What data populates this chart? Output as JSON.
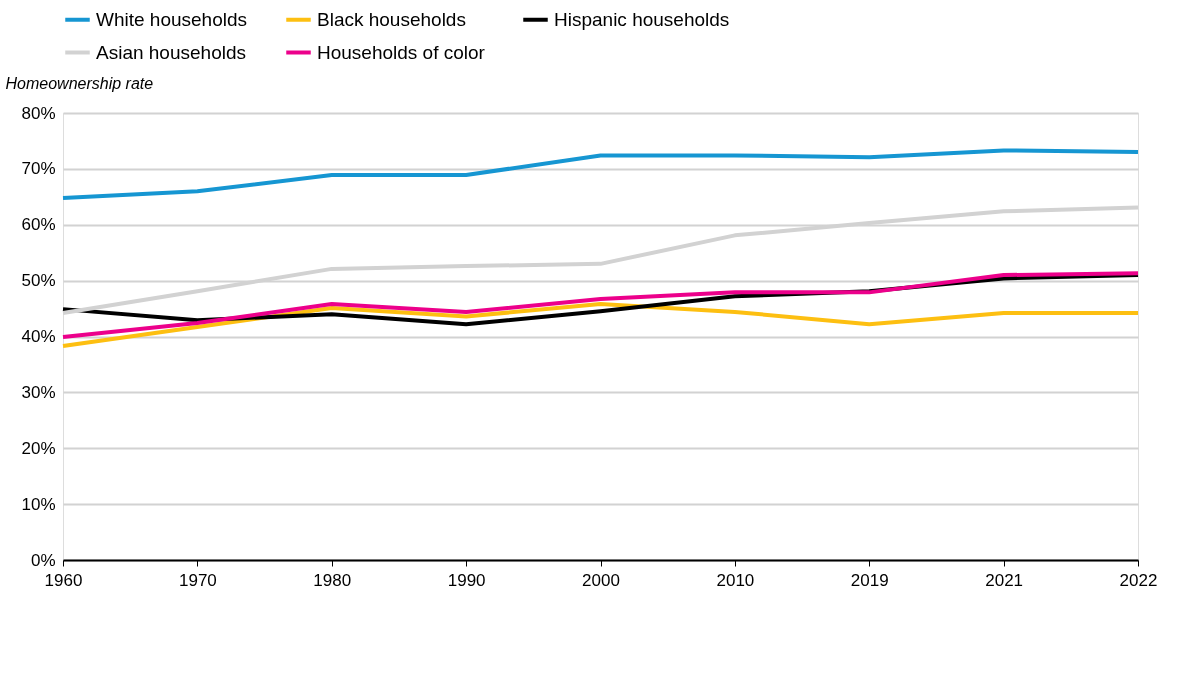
{
  "chart_data": {
    "type": "line",
    "ylabel": "Homeownership rate",
    "categories": [
      "1960",
      "1970",
      "1980",
      "1990",
      "2000",
      "2010",
      "2019",
      "2021",
      "2022"
    ],
    "series": [
      {
        "name": "White households",
        "color": "#1696d2",
        "values": [
          64.8,
          66.0,
          68.9,
          68.9,
          72.4,
          72.4,
          72.1,
          73.3,
          73.0
        ]
      },
      {
        "name": "Black households",
        "color": "#fdbf11",
        "values": [
          38.3,
          41.7,
          45.1,
          43.6,
          45.8,
          44.4,
          42.2,
          44.2,
          44.2
        ]
      },
      {
        "name": "Hispanic households",
        "color": "#000000",
        "values": [
          44.9,
          42.9,
          44.0,
          42.2,
          44.5,
          47.2,
          48.1,
          50.4,
          51.0
        ]
      },
      {
        "name": "Asian households",
        "color": "#d2d2d2",
        "values": [
          44.2,
          48.1,
          52.1,
          52.6,
          53.0,
          58.1,
          60.3,
          62.4,
          63.1
        ]
      },
      {
        "name": "Households of color",
        "color": "#ec008b",
        "values": [
          39.9,
          42.4,
          45.8,
          44.4,
          46.7,
          47.9,
          47.9,
          51.0,
          51.3
        ]
      }
    ],
    "ylim": [
      0,
      80
    ],
    "yticks": [
      {
        "value": 0,
        "label": "0%"
      },
      {
        "value": 10,
        "label": "10%"
      },
      {
        "value": 20,
        "label": "20%"
      },
      {
        "value": 30,
        "label": "30%"
      },
      {
        "value": 40,
        "label": "40%"
      },
      {
        "value": 50,
        "label": "50%"
      },
      {
        "value": 60,
        "label": "60%"
      },
      {
        "value": 70,
        "label": "70%"
      },
      {
        "value": 80,
        "label": "80%"
      }
    ],
    "grid": "y",
    "legend": "top left"
  }
}
